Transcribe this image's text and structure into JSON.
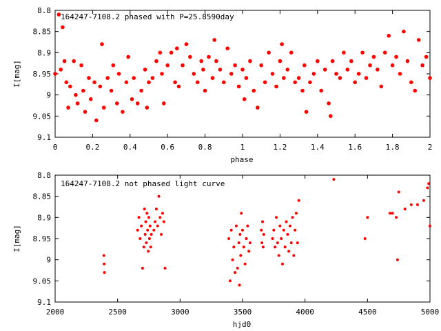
{
  "chart_data": [
    {
      "type": "scatter",
      "title": "164247-7108.2 phased with P=25.8590day",
      "xlabel": "phase",
      "ylabel": "I[mag]",
      "xlim": [
        0,
        2
      ],
      "ylim": [
        9.1,
        8.8
      ],
      "y_inverted": true,
      "xticks": [
        "0",
        "0.2",
        "0.4",
        "0.6",
        "0.8",
        "1",
        "1.2",
        "1.4",
        "1.6",
        "1.8",
        "2"
      ],
      "xtick_values": [
        0,
        0.2,
        0.4,
        0.6,
        0.8,
        1,
        1.2,
        1.4,
        1.6,
        1.8,
        2
      ],
      "yticks": [
        "8.8",
        "8.85",
        "8.9",
        "8.95",
        "9",
        "9.05",
        "9.1"
      ],
      "ytick_values": [
        8.8,
        8.85,
        8.9,
        8.95,
        9,
        9.05,
        9.1
      ],
      "grid": false,
      "marker_color": "#ff0000",
      "series": [
        {
          "x": [
            0.0,
            0.02,
            0.03,
            0.04,
            0.05,
            0.06,
            0.07,
            0.08,
            0.1,
            0.11,
            0.12,
            0.14,
            0.15,
            0.16,
            0.18,
            0.19,
            0.21,
            0.22,
            0.24,
            0.25,
            0.26,
            0.28,
            0.3,
            0.31,
            0.33,
            0.34,
            0.36,
            0.38,
            0.39,
            0.41,
            0.42,
            0.44,
            0.46,
            0.48,
            0.49,
            0.5,
            0.52,
            0.54,
            0.56,
            0.57,
            0.58,
            0.6,
            0.62,
            0.64,
            0.65,
            0.66,
            0.68,
            0.7,
            0.72,
            0.74,
            0.76,
            0.78,
            0.79,
            0.8,
            0.82,
            0.84,
            0.85,
            0.86,
            0.88,
            0.9,
            0.92,
            0.94,
            0.96,
            0.98,
            1.0,
            1.01,
            1.02,
            1.04,
            1.06,
            1.08,
            1.1,
            1.12,
            1.14,
            1.16,
            1.18,
            1.2,
            1.21,
            1.22,
            1.24,
            1.26,
            1.28,
            1.3,
            1.32,
            1.33,
            1.34,
            1.36,
            1.38,
            1.4,
            1.42,
            1.44,
            1.46,
            1.47,
            1.48,
            1.5,
            1.52,
            1.54,
            1.56,
            1.58,
            1.6,
            1.62,
            1.64,
            1.66,
            1.68,
            1.7,
            1.72,
            1.74,
            1.76,
            1.78,
            1.8,
            1.82,
            1.84,
            1.86,
            1.88,
            1.9,
            1.92,
            1.94,
            1.96,
            1.98,
            2.0
          ],
          "y": [
            8.95,
            8.81,
            8.94,
            8.84,
            8.92,
            8.97,
            9.03,
            8.98,
            8.92,
            9.0,
            9.02,
            8.93,
            8.99,
            9.04,
            8.96,
            9.01,
            8.97,
            9.06,
            8.98,
            8.88,
            9.03,
            8.96,
            8.99,
            8.93,
            9.02,
            8.95,
            9.04,
            8.97,
            8.91,
            9.01,
            8.96,
            9.02,
            8.99,
            8.94,
            9.03,
            8.97,
            8.96,
            8.92,
            8.9,
            8.95,
            9.02,
            8.93,
            8.9,
            8.97,
            8.89,
            8.98,
            8.93,
            8.88,
            8.91,
            8.95,
            8.97,
            8.92,
            8.94,
            8.99,
            8.91,
            8.96,
            8.87,
            8.92,
            8.94,
            8.97,
            8.89,
            8.95,
            8.93,
            8.98,
            8.94,
            9.01,
            8.96,
            8.92,
            8.99,
            9.03,
            8.93,
            8.97,
            8.9,
            8.95,
            8.98,
            8.92,
            8.88,
            8.96,
            8.94,
            8.9,
            8.97,
            8.96,
            8.99,
            8.93,
            9.04,
            8.97,
            8.95,
            8.92,
            8.99,
            8.94,
            9.02,
            9.05,
            8.92,
            8.95,
            8.96,
            8.9,
            8.94,
            8.92,
            8.97,
            8.95,
            8.9,
            8.96,
            8.93,
            8.91,
            8.94,
            8.98,
            8.9,
            8.86,
            8.93,
            8.91,
            8.95,
            8.85,
            8.92,
            8.97,
            8.99,
            8.87,
            8.93,
            8.91,
            8.96
          ]
        }
      ]
    },
    {
      "type": "scatter",
      "title": "164247-7108.2 not phased light curve",
      "xlabel": "hjd0",
      "ylabel": "I[mag]",
      "xlim": [
        2000,
        5000
      ],
      "ylim": [
        9.1,
        8.8
      ],
      "y_inverted": true,
      "xticks": [
        "2000",
        "2500",
        "3000",
        "3500",
        "4000",
        "4500",
        "5000"
      ],
      "xtick_values": [
        2000,
        2500,
        3000,
        3500,
        4000,
        4500,
        5000
      ],
      "yticks": [
        "8.8",
        "8.85",
        "8.9",
        "8.95",
        "9",
        "9.05",
        "9.1"
      ],
      "ytick_values": [
        8.8,
        8.85,
        8.9,
        8.95,
        9,
        9.05,
        9.1
      ],
      "grid": false,
      "marker_color": "#ff0000",
      "series": [
        {
          "x": [
            2390,
            2392,
            2395,
            2660,
            2670,
            2680,
            2690,
            2700,
            2710,
            2715,
            2720,
            2725,
            2730,
            2735,
            2740,
            2745,
            2750,
            2755,
            2760,
            2765,
            2770,
            2790,
            2800,
            2810,
            2820,
            2830,
            2840,
            2850,
            2860,
            2870,
            2880,
            3390,
            3400,
            3410,
            3420,
            3430,
            3440,
            3450,
            3460,
            3470,
            3475,
            3480,
            3485,
            3490,
            3500,
            3510,
            3520,
            3530,
            3540,
            3550,
            3560,
            3650,
            3655,
            3660,
            3665,
            3670,
            3740,
            3750,
            3760,
            3770,
            3780,
            3790,
            3800,
            3810,
            3820,
            3830,
            3840,
            3850,
            3860,
            3870,
            3880,
            3890,
            3900,
            3910,
            3920,
            3930,
            3940,
            3950,
            4230,
            4480,
            4500,
            4680,
            4700,
            4730,
            4740,
            4750,
            4800,
            4850,
            4900,
            4950,
            4980,
            4990,
            5000
          ],
          "y": [
            8.99,
            9.01,
            9.03,
            8.93,
            8.9,
            8.95,
            8.92,
            9.02,
            8.97,
            8.88,
            8.94,
            8.91,
            8.96,
            8.89,
            8.93,
            8.98,
            8.9,
            8.95,
            8.92,
            8.97,
            8.94,
            8.93,
            8.91,
            8.88,
            8.92,
            8.85,
            8.9,
            8.94,
            8.89,
            8.91,
            9.02,
            8.95,
            9.05,
            8.93,
            9.0,
            8.97,
            9.03,
            8.92,
            9.02,
            8.96,
            9.06,
            8.94,
            8.99,
            8.89,
            8.93,
            8.97,
            9.01,
            8.95,
            8.92,
            8.98,
            8.96,
            8.93,
            8.96,
            8.91,
            8.97,
            8.94,
            8.95,
            8.93,
            8.97,
            8.9,
            8.96,
            8.99,
            8.92,
            8.95,
            9.01,
            8.93,
            8.97,
            8.91,
            8.94,
            8.98,
            8.92,
            8.96,
            8.9,
            8.99,
            8.93,
            8.89,
            8.96,
            8.86,
            8.81,
            8.95,
            8.9,
            8.89,
            8.89,
            8.9,
            9.0,
            8.84,
            8.88,
            8.87,
            8.87,
            8.86,
            8.83,
            8.82,
            8.92
          ]
        }
      ]
    }
  ]
}
